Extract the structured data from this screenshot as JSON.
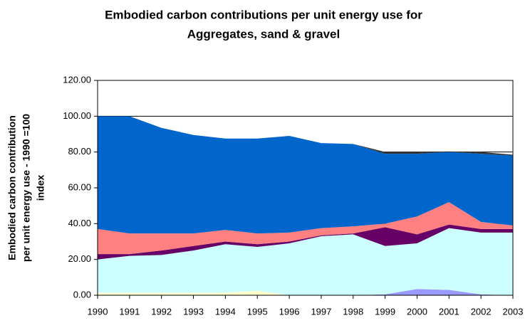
{
  "chart_data": {
    "type": "area",
    "title": [
      "Embodied carbon contributions per unit energy use for",
      "Aggregates, sand & gravel"
    ],
    "y_label": [
      "Embodied carbon contribution",
      "per unit energy use - 1990 =100",
      "index"
    ],
    "categories": [
      "1990",
      "1991",
      "1992",
      "1993",
      "1994",
      "1995",
      "1996",
      "1997",
      "1998",
      "1999",
      "2000",
      "2001",
      "2002",
      "2003"
    ],
    "series": [
      {
        "color": "#ffffcc",
        "values": [
          1.5,
          1.5,
          1.5,
          1.5,
          1.5,
          2.5,
          0,
          0,
          0,
          0,
          0,
          0,
          0,
          0
        ]
      },
      {
        "color": "#9999ff",
        "values": [
          0,
          0,
          0,
          0,
          0,
          0,
          0,
          0,
          0,
          0.5,
          3.5,
          3,
          0.5,
          0
        ]
      },
      {
        "color": "#ccffff",
        "values": [
          18.5,
          20.5,
          21,
          23.5,
          27,
          24.5,
          29,
          33,
          34,
          27,
          25.5,
          34.5,
          34.5,
          35
        ]
      },
      {
        "color": "#660066",
        "values": [
          3,
          1,
          2.5,
          2.5,
          1.5,
          1.5,
          1,
          0.5,
          0.5,
          10.5,
          5,
          2,
          2,
          2
        ]
      },
      {
        "color": "#ff8080",
        "values": [
          14,
          11.5,
          9.5,
          7,
          6.5,
          6,
          5,
          4,
          4,
          2,
          10,
          12.5,
          4,
          2
        ]
      },
      {
        "color": "#0066cc",
        "values": [
          63,
          65.5,
          59,
          55,
          51,
          53,
          54,
          47.5,
          46,
          39,
          35,
          28,
          38,
          39
        ]
      },
      {
        "color": "#333333",
        "values": [
          0,
          0,
          0,
          0,
          0,
          0,
          0,
          0,
          0,
          1,
          1,
          0.3,
          1,
          0.5
        ]
      }
    ],
    "ylim": [
      0,
      120
    ],
    "yticks": [
      {
        "value": 0,
        "label": "0.00"
      },
      {
        "value": 20,
        "label": "20.00"
      },
      {
        "value": 40,
        "label": "40.00"
      },
      {
        "value": 60,
        "label": "60.00"
      },
      {
        "value": 80,
        "label": "80.00"
      },
      {
        "value": 100,
        "label": "100.00"
      },
      {
        "value": 120,
        "label": "120.00"
      }
    ],
    "grid": true
  }
}
